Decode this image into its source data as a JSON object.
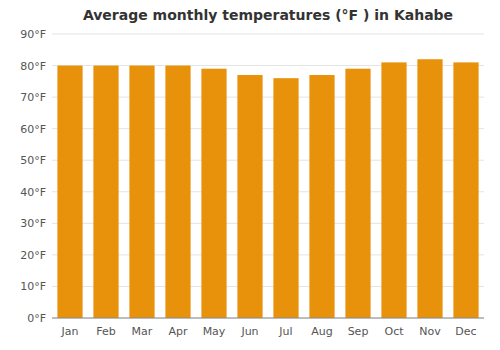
{
  "chart_data": {
    "type": "bar",
    "title": "Average monthly temperatures (°F ) in Kahabe",
    "categories": [
      "Jan",
      "Feb",
      "Mar",
      "Apr",
      "May",
      "Jun",
      "Jul",
      "Aug",
      "Sep",
      "Oct",
      "Nov",
      "Dec"
    ],
    "values": [
      80,
      80,
      80,
      80,
      79,
      77,
      76,
      77,
      79,
      81,
      82,
      81
    ],
    "color": "#E8910A",
    "ylim": [
      0,
      90
    ],
    "yticks": [
      {
        "value": 0,
        "label": "0°F"
      },
      {
        "value": 10,
        "label": "10°F"
      },
      {
        "value": 20,
        "label": "20°F"
      },
      {
        "value": 30,
        "label": "30°F"
      },
      {
        "value": 40,
        "label": "40°F"
      },
      {
        "value": 50,
        "label": "50°F"
      },
      {
        "value": 60,
        "label": "60°F"
      },
      {
        "value": 70,
        "label": "70°F"
      },
      {
        "value": 80,
        "label": "80°F"
      },
      {
        "value": 90,
        "label": "90°F"
      }
    ],
    "grid": true
  }
}
